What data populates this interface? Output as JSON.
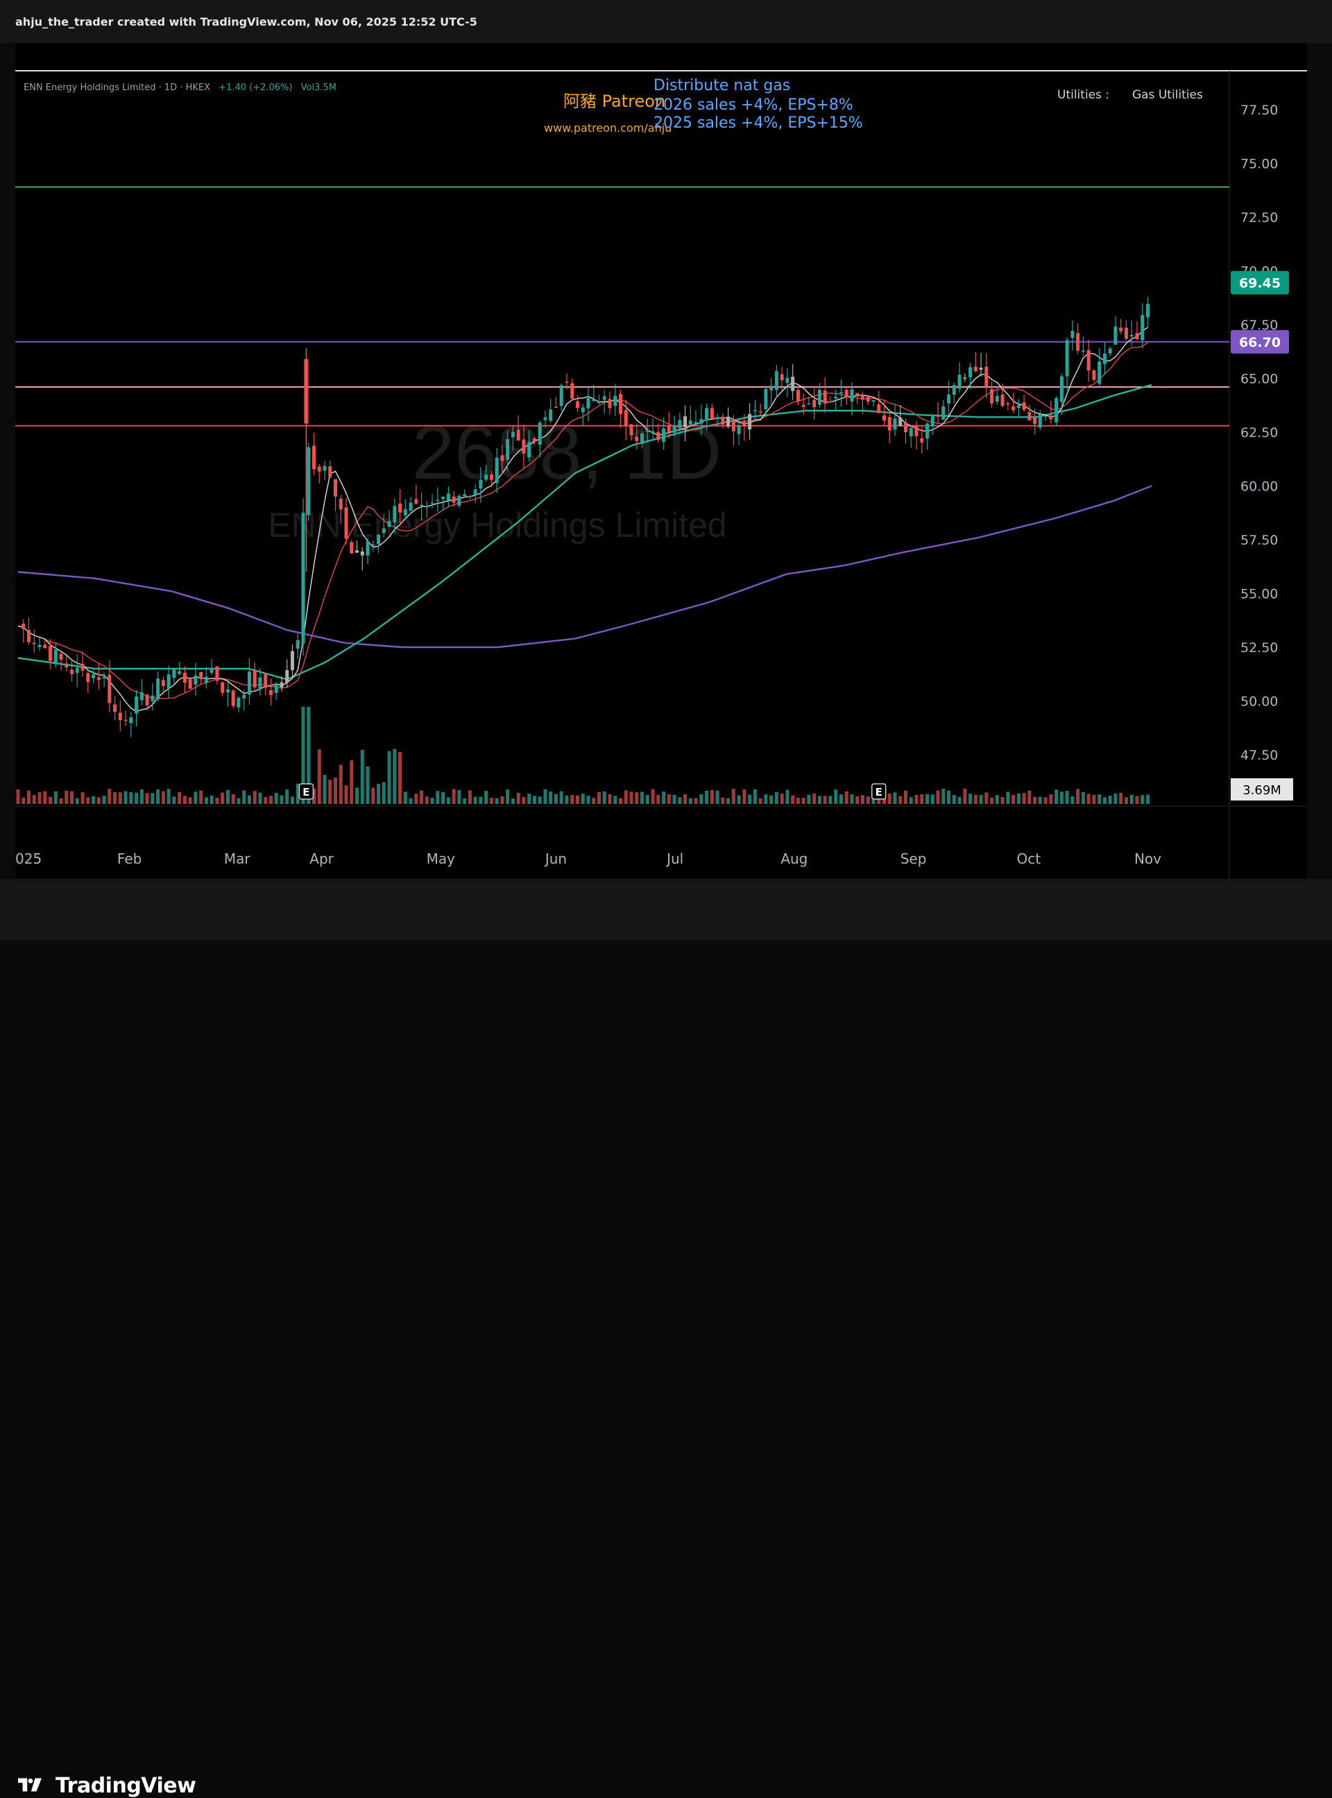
{
  "header": {
    "text": "ahju_the_trader created with TradingView.com, Nov 06, 2025 12:52 UTC-5"
  },
  "legend": {
    "symbol": "ENN Energy Holdings Limited · 1D · HKEX",
    "change": "+1.40 (+2.06%)",
    "volume": "Vol3.5M"
  },
  "watermark": {
    "ticker": "2688, 1D",
    "company": "ENN Energy Holdings Limited"
  },
  "patreon": {
    "title": "阿豬 Patreon",
    "url": "www.patreon.com/ahju"
  },
  "notes": {
    "line1": "Distribute nat gas",
    "line2": "2026 sales +4%, EPS+8%",
    "line3": "2025 sales  +4%, EPS+15%"
  },
  "sector": {
    "label": "Utilities :",
    "value": "Gas Utilities"
  },
  "footer": {
    "brand": "TradingView"
  },
  "colors": {
    "up": "#26a69a",
    "down": "#ef5350",
    "purple": "#7e57c2",
    "green_line": "#4caf50",
    "pink_line": "#f5a3b8",
    "red_line": "#ff3b5c",
    "ma_teal": "#2bb39a",
    "ma_red": "#e04848",
    "ma_white": "#dddddd"
  },
  "chart_data": {
    "type": "candlestick",
    "y_axis": {
      "ticks": [
        "77.50",
        "75.00",
        "72.50",
        "70.00",
        "67.50",
        "65.00",
        "62.50",
        "60.00",
        "57.50",
        "55.00",
        "52.50",
        "50.00",
        "47.50"
      ],
      "range": [
        46,
        79
      ]
    },
    "x_axis": {
      "labels": [
        "025",
        "Feb",
        "Mar",
        "Apr",
        "May",
        "Jun",
        "Jul",
        "Aug",
        "Sep",
        "Oct",
        "Nov"
      ],
      "label_days": [
        0,
        29,
        57,
        79,
        110,
        140,
        171,
        202,
        233,
        263,
        294
      ]
    },
    "price_labels": [
      {
        "value": 69.45,
        "text": "69.45",
        "color": "#089981"
      },
      {
        "value": 66.7,
        "text": "66.70",
        "color": "#7e57c2"
      }
    ],
    "volume_label": "3.69M",
    "horizontal_levels": [
      {
        "value": 73.9,
        "color": "#4caf50"
      },
      {
        "value": 66.7,
        "color": "#7e57c2"
      },
      {
        "value": 64.6,
        "color": "#f5a3b8"
      },
      {
        "value": 62.8,
        "color": "#ff3b5c"
      }
    ],
    "earnings_markers": [
      {
        "day": 75,
        "label": "E"
      },
      {
        "day": 224,
        "label": "E"
      }
    ],
    "anchors": [
      [
        0,
        53.5
      ],
      [
        8,
        52.3
      ],
      [
        15,
        51.3
      ],
      [
        22,
        51.2
      ],
      [
        26,
        49.0
      ],
      [
        29,
        49.6
      ],
      [
        35,
        50.3
      ],
      [
        40,
        51.5
      ],
      [
        46,
        50.7
      ],
      [
        50,
        51.6
      ],
      [
        56,
        49.9
      ],
      [
        60,
        51.0
      ],
      [
        66,
        50.5
      ],
      [
        70,
        51.2
      ],
      [
        73,
        53.3
      ],
      [
        75,
        62.8
      ],
      [
        76,
        61.2
      ],
      [
        80,
        61.0
      ],
      [
        84,
        58.5
      ],
      [
        87,
        56.8
      ],
      [
        92,
        57.2
      ],
      [
        96,
        58.5
      ],
      [
        100,
        59.2
      ],
      [
        106,
        58.6
      ],
      [
        112,
        59.6
      ],
      [
        118,
        59.8
      ],
      [
        124,
        60.6
      ],
      [
        128,
        62.6
      ],
      [
        133,
        61.6
      ],
      [
        138,
        63.4
      ],
      [
        142,
        64.6
      ],
      [
        146,
        64.0
      ],
      [
        151,
        63.8
      ],
      [
        156,
        63.9
      ],
      [
        160,
        62.6
      ],
      [
        165,
        62.2
      ],
      [
        170,
        63.0
      ],
      [
        176,
        63.2
      ],
      [
        182,
        63.5
      ],
      [
        187,
        62.8
      ],
      [
        193,
        63.8
      ],
      [
        198,
        65.3
      ],
      [
        203,
        63.8
      ],
      [
        210,
        64.2
      ],
      [
        215,
        64.6
      ],
      [
        220,
        64.1
      ],
      [
        226,
        63.0
      ],
      [
        231,
        62.5
      ],
      [
        235,
        62.0
      ],
      [
        240,
        63.5
      ],
      [
        245,
        64.8
      ],
      [
        250,
        65.3
      ],
      [
        255,
        63.7
      ],
      [
        260,
        63.6
      ],
      [
        264,
        62.9
      ],
      [
        268,
        63.1
      ],
      [
        271,
        64.6
      ],
      [
        274,
        67.2
      ],
      [
        277,
        66.2
      ],
      [
        280,
        65.2
      ],
      [
        284,
        66.8
      ],
      [
        288,
        67.3
      ],
      [
        291,
        67.0
      ],
      [
        293,
        68.0
      ],
      [
        295,
        69.4
      ]
    ],
    "moving_averages": [
      {
        "color": "#7e57c2",
        "points": [
          [
            0,
            56.0
          ],
          [
            20,
            55.7
          ],
          [
            40,
            55.1
          ],
          [
            55,
            54.3
          ],
          [
            70,
            53.3
          ],
          [
            85,
            52.7
          ],
          [
            100,
            52.5
          ],
          [
            125,
            52.5
          ],
          [
            145,
            52.9
          ],
          [
            160,
            53.6
          ],
          [
            180,
            54.6
          ],
          [
            200,
            55.9
          ],
          [
            215,
            56.3
          ],
          [
            230,
            56.9
          ],
          [
            250,
            57.6
          ],
          [
            270,
            58.5
          ],
          [
            285,
            59.3
          ],
          [
            295,
            60.0
          ]
        ]
      },
      {
        "color": "#2bb39a",
        "points": [
          [
            0,
            52.0
          ],
          [
            20,
            51.5
          ],
          [
            40,
            51.5
          ],
          [
            60,
            51.5
          ],
          [
            70,
            51.0
          ],
          [
            80,
            51.8
          ],
          [
            90,
            52.9
          ],
          [
            110,
            55.5
          ],
          [
            130,
            58.3
          ],
          [
            145,
            60.6
          ],
          [
            160,
            61.9
          ],
          [
            175,
            62.6
          ],
          [
            190,
            63.2
          ],
          [
            205,
            63.5
          ],
          [
            220,
            63.5
          ],
          [
            235,
            63.3
          ],
          [
            250,
            63.2
          ],
          [
            265,
            63.2
          ],
          [
            275,
            63.6
          ],
          [
            285,
            64.2
          ],
          [
            295,
            64.7
          ]
        ]
      }
    ]
  }
}
